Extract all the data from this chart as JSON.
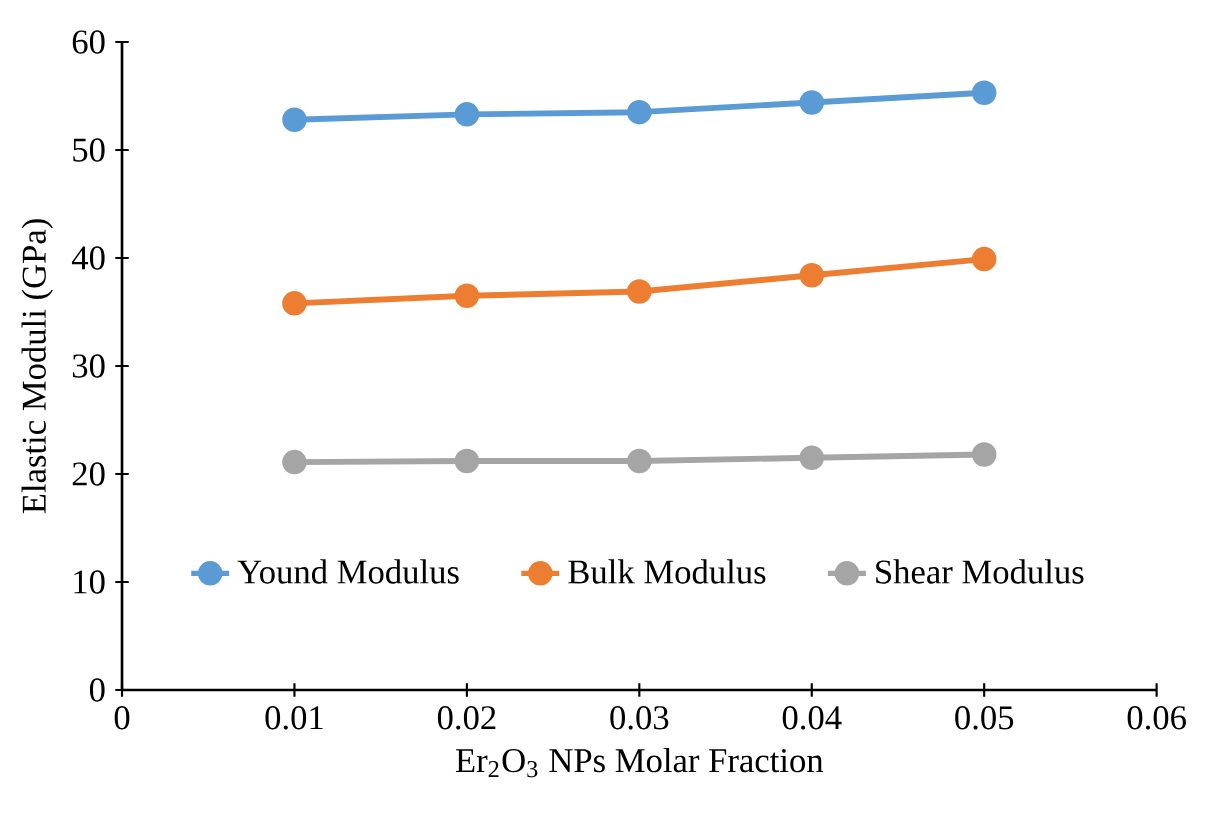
{
  "chart_data": {
    "type": "line",
    "xlabel": "Er$_{2}$O$_{3}$ NPs Molar Fraction",
    "ylabel": "Elastic Moduli (GPa)",
    "x": [
      0.01,
      0.02,
      0.03,
      0.04,
      0.05
    ],
    "series": [
      {
        "name": "Yound Modulus",
        "color": "#5b9bd5",
        "values": [
          52.8,
          53.3,
          53.5,
          54.4,
          55.3
        ]
      },
      {
        "name": "Bulk Modulus",
        "color": "#ed7d31",
        "values": [
          35.8,
          36.5,
          36.9,
          38.4,
          39.9
        ]
      },
      {
        "name": "Shear Modulus",
        "color": "#a5a5a5",
        "values": [
          21.1,
          21.2,
          21.2,
          21.5,
          21.8
        ]
      }
    ],
    "xlim": [
      0,
      0.06
    ],
    "xticks": [
      0,
      0.01,
      0.02,
      0.03,
      0.04,
      0.05,
      0.06
    ],
    "ylim": [
      0,
      60
    ],
    "yticks": [
      0,
      10,
      20,
      30,
      40,
      50,
      60
    ],
    "grid": false,
    "legend": "bottom",
    "marker": "circle",
    "line_style": "solid"
  }
}
